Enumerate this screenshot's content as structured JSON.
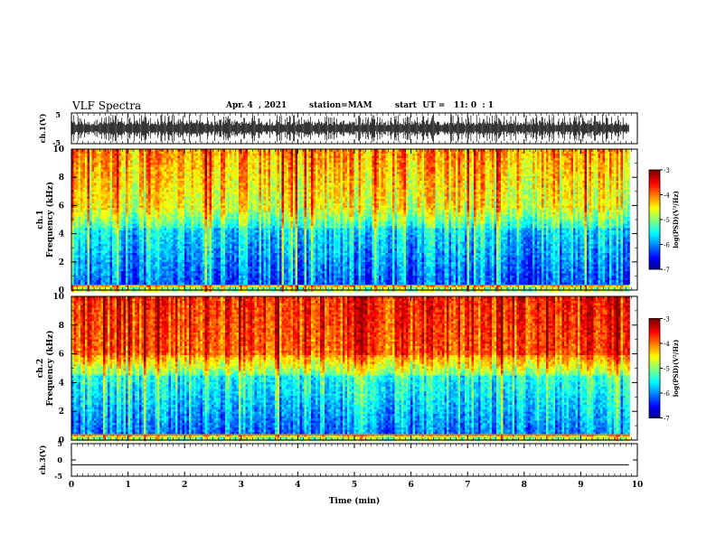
{
  "header": {
    "title": "VLF Spectra",
    "date": "Apr. 4  , 2021",
    "station": "station=MAM",
    "start": "start  UT =   11: 0  : 1"
  },
  "colorbar": {
    "label": "log(PSD)(V²/Hz)"
  },
  "chart_data": [
    {
      "type": "line",
      "panel": "ch1-waveform",
      "ylabel": "ch.1(V)",
      "ylim": [
        -5,
        5
      ],
      "yticks": [
        "5",
        "-5"
      ],
      "x_range_min": [
        0,
        9.85
      ]
    },
    {
      "type": "heatmap",
      "panel": "ch1-spectrogram",
      "ylabel": "ch.1\nFrequency (kHz)",
      "ylim": [
        0,
        10
      ],
      "yticks": [
        "0",
        "2",
        "4",
        "6",
        "8",
        "10"
      ],
      "x_range_min": [
        0,
        9.85
      ],
      "colorbar": {
        "range": [
          -7,
          -3
        ],
        "ticks": [
          "-3",
          "-4",
          "-5",
          "-6",
          "-7"
        ]
      }
    },
    {
      "type": "heatmap",
      "panel": "ch2-spectrogram",
      "ylabel": "ch.2\nFrequency (kHz)",
      "ylim": [
        0,
        10
      ],
      "yticks": [
        "0",
        "2",
        "4",
        "6",
        "8",
        "10"
      ],
      "x_range_min": [
        0,
        9.85
      ],
      "colorbar": {
        "range": [
          -7,
          -3
        ],
        "ticks": [
          "-3",
          "-4",
          "-5",
          "-6",
          "-7"
        ]
      }
    },
    {
      "type": "line",
      "panel": "ch3-waveform",
      "ylabel": "ch.3(V)",
      "ylim": [
        -5,
        5
      ],
      "yticks": [
        "5",
        "0",
        "-5"
      ],
      "constant_value": -1.5
    }
  ],
  "xaxis": {
    "label": "Time  (min)",
    "ticks": [
      "0",
      "1",
      "2",
      "3",
      "4",
      "5",
      "6",
      "7",
      "8",
      "9",
      "10"
    ],
    "range": [
      0,
      10
    ]
  }
}
